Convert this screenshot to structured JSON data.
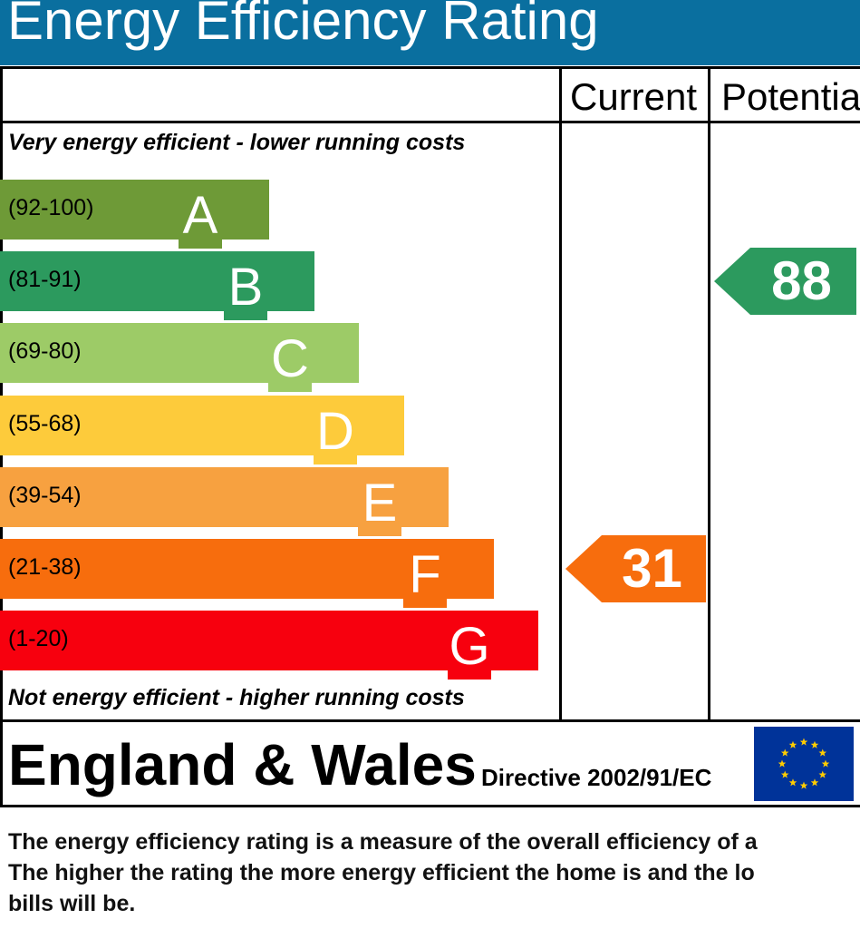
{
  "header": {
    "title": "Energy Efficiency Rating"
  },
  "columns": {
    "current": "Current",
    "potential": "Potential"
  },
  "captions": {
    "top": "Very energy efficient - lower running costs",
    "bottom": "Not energy efficient - higher running costs"
  },
  "chart_data": {
    "type": "bar",
    "bands": [
      {
        "letter": "A",
        "range": "(92-100)",
        "color": "#6e9a37"
      },
      {
        "letter": "B",
        "range": "(81-91)",
        "color": "#2c9a5e"
      },
      {
        "letter": "C",
        "range": "(69-80)",
        "color": "#9dcb67"
      },
      {
        "letter": "D",
        "range": "(55-68)",
        "color": "#fdcb3b"
      },
      {
        "letter": "E",
        "range": "(39-54)",
        "color": "#f7a140"
      },
      {
        "letter": "F",
        "range": "(21-38)",
        "color": "#f76d0d"
      },
      {
        "letter": "G",
        "range": "(1-20)",
        "color": "#f7000e"
      }
    ],
    "current": {
      "value": "31",
      "band": "F",
      "color": "#f76d0d"
    },
    "potential": {
      "value": "88",
      "band": "B",
      "color": "#2c9a5e"
    }
  },
  "footer": {
    "region": "England & Wales",
    "directive": "Directive 2002/91/EC",
    "flag_icon": "eu-flag-icon"
  },
  "description": {
    "line1": "The energy efficiency rating is a measure of the overall efficiency of a",
    "line2": "The higher the rating the more energy efficient the home is and the lo",
    "line3": "bills will be."
  }
}
